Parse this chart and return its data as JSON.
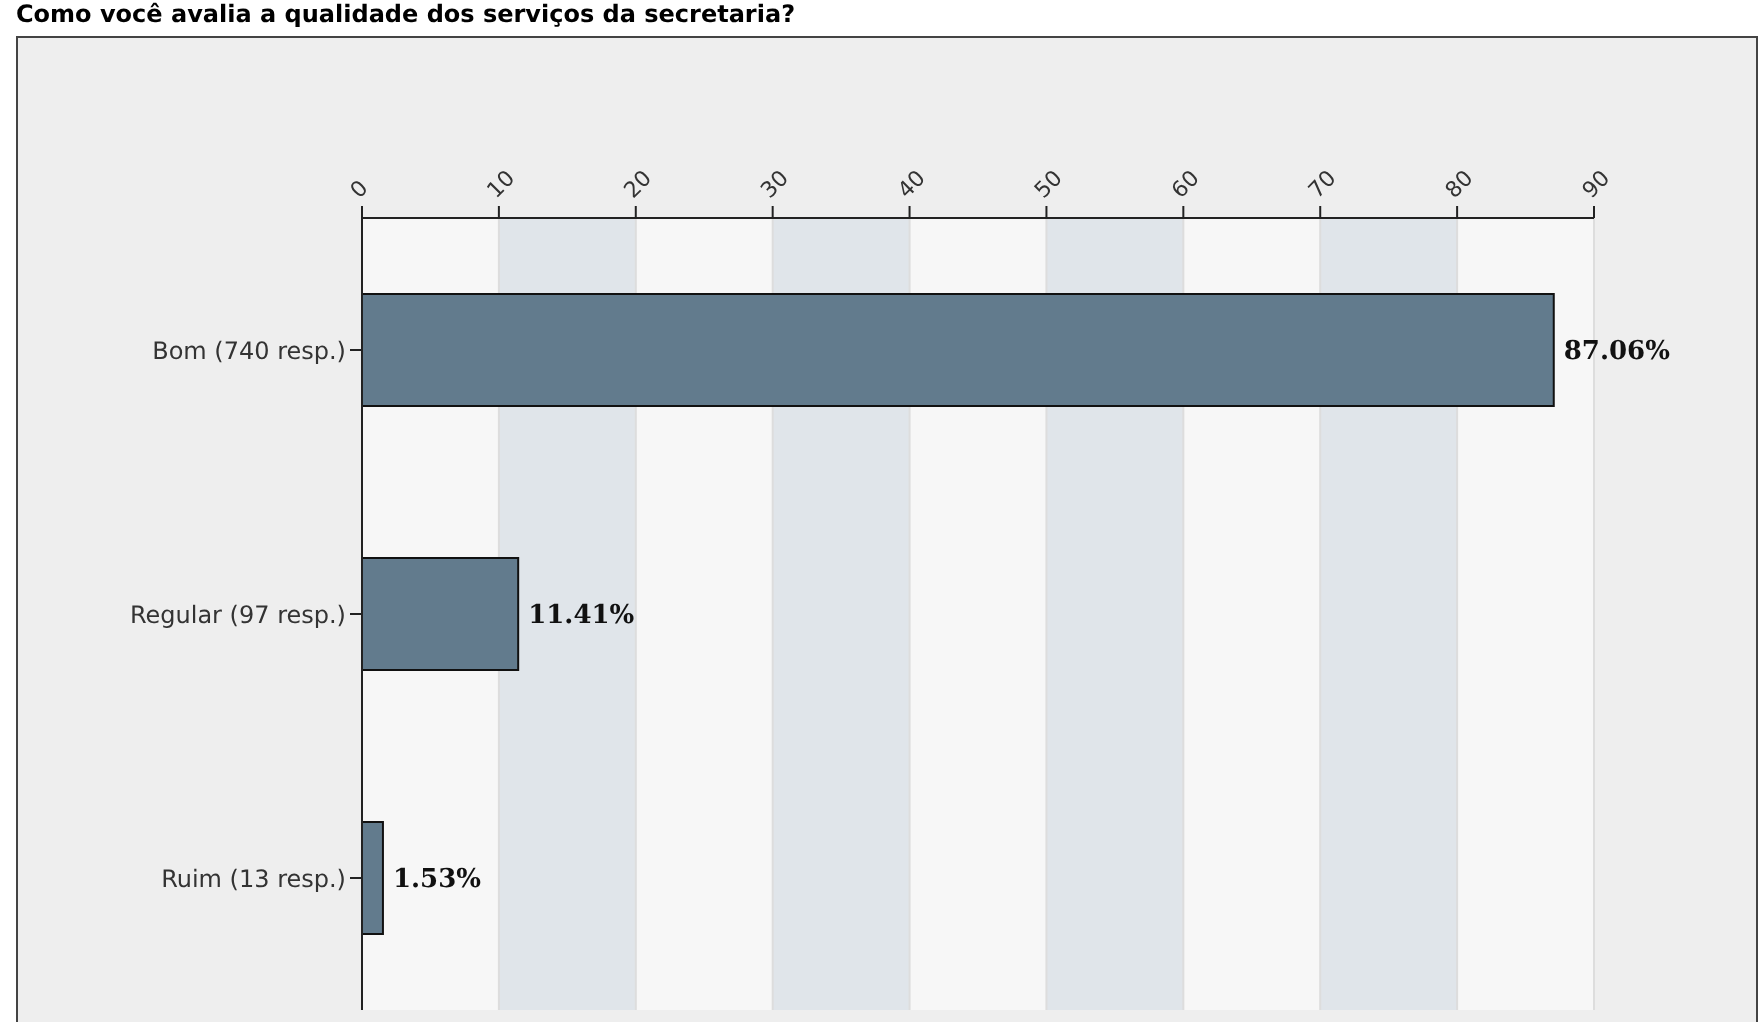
{
  "chart_data": {
    "type": "bar",
    "orientation": "horizontal",
    "title": "Como você avalia a qualidade dos serviços da secretaria?",
    "categories": [
      "Bom (740 resp.)",
      "Regular (97 resp.)",
      "Ruim (13 resp.)"
    ],
    "values": [
      87.06,
      11.41,
      1.53
    ],
    "value_labels": [
      "87.06%",
      "11.41%",
      "1.53%"
    ],
    "color": "#627b8d",
    "xlim": [
      0,
      90
    ],
    "xticks": [
      0,
      10,
      20,
      30,
      40,
      50,
      60,
      70,
      80,
      90
    ],
    "grid": "x"
  }
}
